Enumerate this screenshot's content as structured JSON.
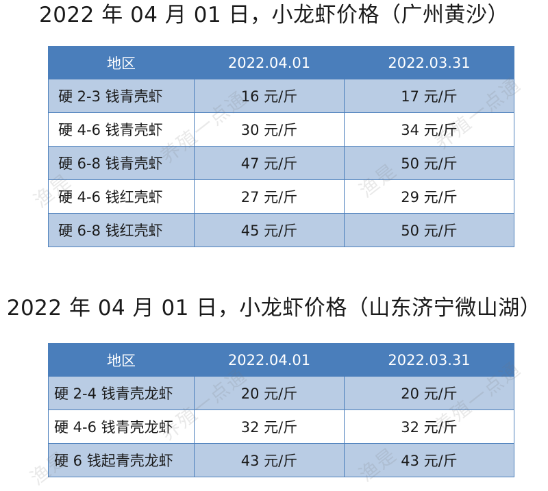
{
  "section1": {
    "title": "2022 年 04 月 01 日，小龙虾价格（广州黄沙）",
    "headers": [
      "地区",
      "2022.04.01",
      "2022.03.31"
    ],
    "rows": [
      {
        "name": "硬 2-3 钱青壳虾",
        "today": "16 元/斤",
        "yesterday": "17 元/斤"
      },
      {
        "name": "硬 4-6 钱青壳虾",
        "today": "30 元/斤",
        "yesterday": "34 元/斤"
      },
      {
        "name": "硬 6-8 钱青壳虾",
        "today": "47 元/斤",
        "yesterday": "50 元/斤"
      },
      {
        "name": "硬 4-6 钱红壳虾",
        "today": "27 元/斤",
        "yesterday": "29 元/斤"
      },
      {
        "name": "硬 6-8 钱红壳虾",
        "today": "45 元/斤",
        "yesterday": "50 元/斤"
      }
    ]
  },
  "section2": {
    "title": "2022 年 04 月 01 日，小龙虾价格（山东济宁微山湖）",
    "headers": [
      "地区",
      "2022.04.01",
      "2022.03.31"
    ],
    "rows": [
      {
        "name": "硬 2-4 钱青壳龙虾",
        "today": "20 元/斤",
        "yesterday": "20 元/斤"
      },
      {
        "name": "硬 4-6 钱青壳龙虾",
        "today": "32 元/斤",
        "yesterday": "32 元/斤"
      },
      {
        "name": "硬 6 钱起青壳龙虾",
        "today": "43 元/斤",
        "yesterday": "43 元/斤"
      }
    ]
  },
  "watermark": {
    "brand_a": "渔是",
    "brand_b": "养殖一点通"
  },
  "colors": {
    "header_bg": "#4a7ebb",
    "row_alt_bg": "#b9cce4"
  }
}
